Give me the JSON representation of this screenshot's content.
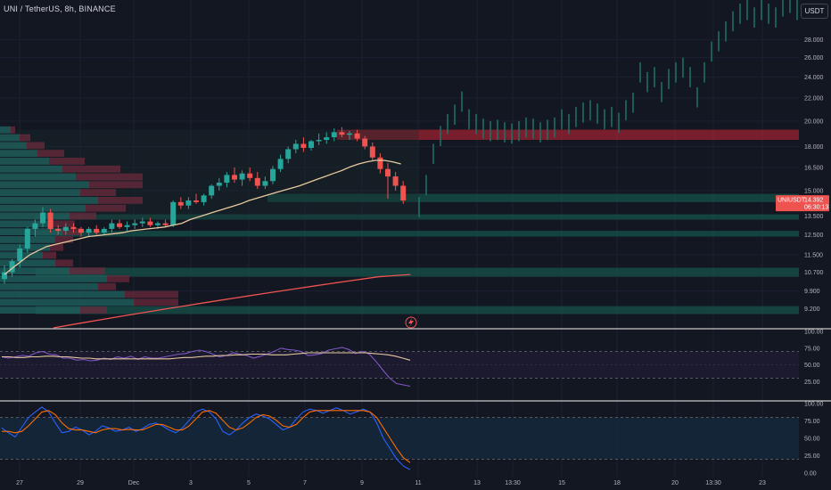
{
  "header": {
    "symbol_line": "UNI / TetherUS, 8h, BINANCE",
    "currency_button": "USDT"
  },
  "chart_data": [
    {
      "type": "candlestick",
      "title": "UNI / TetherUS, 8h, BINANCE",
      "yscale": "log",
      "ylim": [
        8.5,
        33
      ],
      "y_ticks": [
        "28.000",
        "26.000",
        "24.000",
        "22.000",
        "20.000",
        "18.000",
        "16.500",
        "15.000",
        "13.500",
        "12.500",
        "11.500",
        "10.700",
        "9.900",
        "9.200"
      ],
      "x_ticks": [
        "27",
        "29",
        "Dec",
        "3",
        "5",
        "7",
        "9",
        "11",
        "13",
        "13:30",
        "15",
        "18",
        "20",
        "13:30",
        "23"
      ],
      "last_price_label": "UNIUSDT",
      "last_price": "14.392",
      "countdown": "06:30:13",
      "colors": {
        "up": "#26a69a",
        "down": "#ef5350",
        "ma_short": "#e8c9a0",
        "ma_long": "#ef5350",
        "zone_red": "#b22833",
        "zone_green": "#1a6b5e"
      },
      "candles": [
        [
          10.4,
          11.0,
          10.2,
          10.7
        ],
        [
          10.7,
          11.3,
          10.5,
          11.2
        ],
        [
          11.2,
          12.0,
          10.9,
          11.8
        ],
        [
          11.8,
          12.9,
          11.6,
          12.8
        ],
        [
          12.8,
          13.3,
          12.4,
          13.1
        ],
        [
          13.1,
          14.0,
          12.9,
          13.7
        ],
        [
          13.7,
          13.9,
          12.6,
          12.8
        ],
        [
          12.8,
          13.0,
          12.5,
          12.7
        ],
        [
          12.7,
          13.1,
          12.5,
          12.9
        ],
        [
          12.9,
          13.1,
          12.6,
          12.8
        ],
        [
          12.8,
          12.9,
          12.4,
          12.6
        ],
        [
          12.6,
          12.9,
          12.4,
          12.8
        ],
        [
          12.8,
          13.0,
          12.5,
          12.6
        ],
        [
          12.6,
          12.9,
          12.5,
          12.8
        ],
        [
          12.8,
          13.3,
          12.6,
          13.1
        ],
        [
          13.1,
          13.3,
          12.8,
          12.9
        ],
        [
          12.9,
          13.2,
          12.7,
          13.0
        ],
        [
          13.0,
          13.3,
          12.8,
          13.1
        ],
        [
          13.1,
          13.4,
          12.9,
          13.2
        ],
        [
          13.2,
          13.4,
          12.9,
          13.0
        ],
        [
          13.0,
          13.2,
          12.8,
          13.1
        ],
        [
          13.1,
          13.3,
          12.9,
          13.0
        ],
        [
          13.0,
          14.4,
          12.9,
          14.3
        ],
        [
          14.3,
          14.6,
          13.9,
          14.1
        ],
        [
          14.1,
          14.6,
          13.9,
          14.4
        ],
        [
          14.4,
          14.8,
          14.2,
          14.3
        ],
        [
          14.3,
          14.8,
          14.1,
          14.7
        ],
        [
          14.7,
          15.4,
          14.5,
          15.3
        ],
        [
          15.3,
          15.8,
          15.0,
          15.5
        ],
        [
          15.5,
          16.2,
          15.2,
          16.0
        ],
        [
          16.0,
          16.5,
          15.5,
          15.7
        ],
        [
          15.7,
          16.3,
          15.3,
          16.1
        ],
        [
          16.1,
          16.5,
          15.6,
          15.8
        ],
        [
          15.8,
          16.2,
          15.1,
          15.3
        ],
        [
          15.3,
          15.9,
          15.1,
          15.6
        ],
        [
          15.6,
          16.6,
          15.4,
          16.4
        ],
        [
          16.4,
          17.4,
          16.2,
          17.1
        ],
        [
          17.1,
          18.0,
          16.8,
          17.8
        ],
        [
          17.8,
          18.5,
          17.5,
          18.2
        ],
        [
          18.2,
          18.7,
          17.6,
          17.9
        ],
        [
          17.9,
          18.5,
          17.7,
          18.4
        ],
        [
          18.4,
          19.0,
          18.1,
          18.5
        ],
        [
          18.5,
          19.1,
          18.2,
          18.7
        ],
        [
          18.7,
          19.4,
          18.4,
          19.1
        ],
        [
          19.1,
          19.5,
          18.7,
          18.9
        ],
        [
          18.9,
          19.2,
          18.5,
          19.0
        ],
        [
          19.0,
          19.3,
          18.4,
          18.6
        ],
        [
          18.6,
          18.8,
          17.8,
          18.0
        ],
        [
          18.0,
          18.3,
          17.0,
          17.2
        ],
        [
          17.2,
          17.5,
          16.1,
          16.4
        ],
        [
          16.4,
          16.8,
          14.5,
          15.9
        ],
        [
          15.9,
          16.2,
          15.0,
          15.3
        ],
        [
          15.3,
          15.6,
          14.2,
          14.4
        ]
      ],
      "ma_short": [
        10.6,
        10.9,
        11.2,
        11.5,
        11.7,
        11.9,
        12.0,
        12.1,
        12.2,
        12.3,
        12.4,
        12.45,
        12.5,
        12.55,
        12.6,
        12.7,
        12.75,
        12.8,
        12.85,
        12.9,
        13.0,
        13.1,
        13.3,
        13.45,
        13.6,
        13.75,
        13.9,
        14.05,
        14.2,
        14.4,
        14.55,
        14.7,
        14.85,
        15.0,
        15.15,
        15.3,
        15.5,
        15.7,
        15.9,
        16.1,
        16.3,
        16.55,
        16.75,
        16.9,
        17.0,
        17.0,
        16.9,
        16.75
      ],
      "ma_long": [
        8.5,
        8.6,
        8.7,
        8.8,
        8.9,
        9.0,
        9.1,
        9.2,
        9.3,
        9.4,
        9.5,
        9.6,
        9.7,
        9.8,
        9.9,
        10.0,
        10.1,
        10.2,
        10.3,
        10.4,
        10.5,
        10.55,
        10.6
      ],
      "volume_profile_levels": 24,
      "zones": [
        {
          "low": 18.5,
          "high": 19.3,
          "color": "red"
        },
        {
          "low": 14.3,
          "high": 14.8,
          "color": "green"
        },
        {
          "low": 13.3,
          "high": 13.6,
          "color": "green"
        },
        {
          "low": 12.4,
          "high": 12.7,
          "color": "green"
        },
        {
          "low": 10.5,
          "high": 10.9,
          "color": "green"
        },
        {
          "low": 9.0,
          "high": 9.3,
          "color": "green"
        }
      ],
      "future_ghost_highs": [
        14.6,
        16.0,
        18.2,
        19.6,
        20.6,
        21.4,
        22.6,
        21.0,
        20.6,
        20.2,
        20.0,
        20.1,
        19.9,
        19.8,
        20.0,
        20.3,
        20.2,
        19.9,
        20.1,
        20.3,
        21.0,
        20.6,
        21.2,
        21.6,
        21.8,
        21.5,
        21.0,
        21.2,
        20.7,
        21.8,
        22.5,
        25.5,
        24.5,
        25.0,
        23.5,
        24.8,
        25.5,
        26.0,
        25.0,
        23.0,
        25.5,
        27.8,
        29.0,
        30.2,
        31.5,
        32.5,
        33.0,
        32.0,
        33.0,
        32.5,
        32.0,
        33.5,
        34.0,
        33.0
      ]
    },
    {
      "type": "line",
      "title": "",
      "ylim": [
        0,
        100
      ],
      "y_ticks": [
        "100.00",
        "75.00",
        "50.00",
        "25.00"
      ],
      "guide_levels": [
        70,
        30
      ],
      "rsi": [
        62,
        60,
        62,
        64,
        63,
        68,
        70,
        66,
        65,
        60,
        60,
        57,
        58,
        56,
        57,
        60,
        58,
        62,
        60,
        63,
        58,
        62,
        60,
        60,
        62,
        64,
        66,
        67,
        70,
        72,
        70,
        66,
        62,
        64,
        68,
        66,
        64,
        60,
        63,
        66,
        70,
        75,
        73,
        72,
        70,
        64,
        65,
        67,
        72,
        74,
        76,
        73,
        67,
        70,
        66,
        55,
        42,
        30,
        22,
        20,
        18
      ],
      "rsi_ma": [
        62,
        62,
        61,
        61,
        62,
        62,
        63,
        63,
        62,
        62,
        61,
        60,
        60,
        59,
        59,
        59,
        59,
        59,
        59,
        59,
        59,
        59,
        59,
        59,
        60,
        61,
        61,
        62,
        63,
        63,
        64,
        64,
        65,
        65,
        66,
        66,
        66,
        65,
        65,
        65,
        66,
        67,
        68,
        68,
        68,
        68,
        68,
        68,
        68,
        68,
        68,
        67,
        66,
        65,
        63,
        60,
        57
      ],
      "colors": {
        "rsi": "#7e57c2",
        "rsi_ma": "#e8c9a0"
      }
    },
    {
      "type": "line",
      "title": "",
      "ylim": [
        0,
        100
      ],
      "y_ticks": [
        "100.00",
        "75.00",
        "50.00",
        "25.00",
        "0.00"
      ],
      "guide_levels": [
        80,
        20
      ],
      "k": [
        65,
        58,
        52,
        66,
        80,
        88,
        95,
        88,
        72,
        58,
        60,
        66,
        62,
        55,
        60,
        68,
        65,
        60,
        62,
        66,
        60,
        64,
        70,
        72,
        68,
        62,
        58,
        65,
        76,
        88,
        92,
        88,
        78,
        60,
        55,
        62,
        72,
        80,
        85,
        82,
        78,
        70,
        62,
        66,
        78,
        88,
        92,
        90,
        86,
        90,
        94,
        90,
        85,
        88,
        92,
        88,
        72,
        50,
        35,
        20,
        10,
        5
      ],
      "d": [
        60,
        60,
        58,
        60,
        68,
        78,
        88,
        90,
        84,
        72,
        64,
        62,
        62,
        60,
        58,
        62,
        64,
        64,
        62,
        63,
        62,
        62,
        66,
        70,
        70,
        66,
        62,
        62,
        68,
        78,
        88,
        90,
        86,
        76,
        66,
        62,
        65,
        72,
        80,
        84,
        82,
        76,
        68,
        66,
        70,
        80,
        88,
        90,
        90,
        90,
        90,
        90,
        90,
        90,
        90,
        88,
        80,
        65,
        50,
        35,
        22,
        15
      ],
      "colors": {
        "k": "#2962ff",
        "d": "#ff6d00"
      }
    }
  ]
}
